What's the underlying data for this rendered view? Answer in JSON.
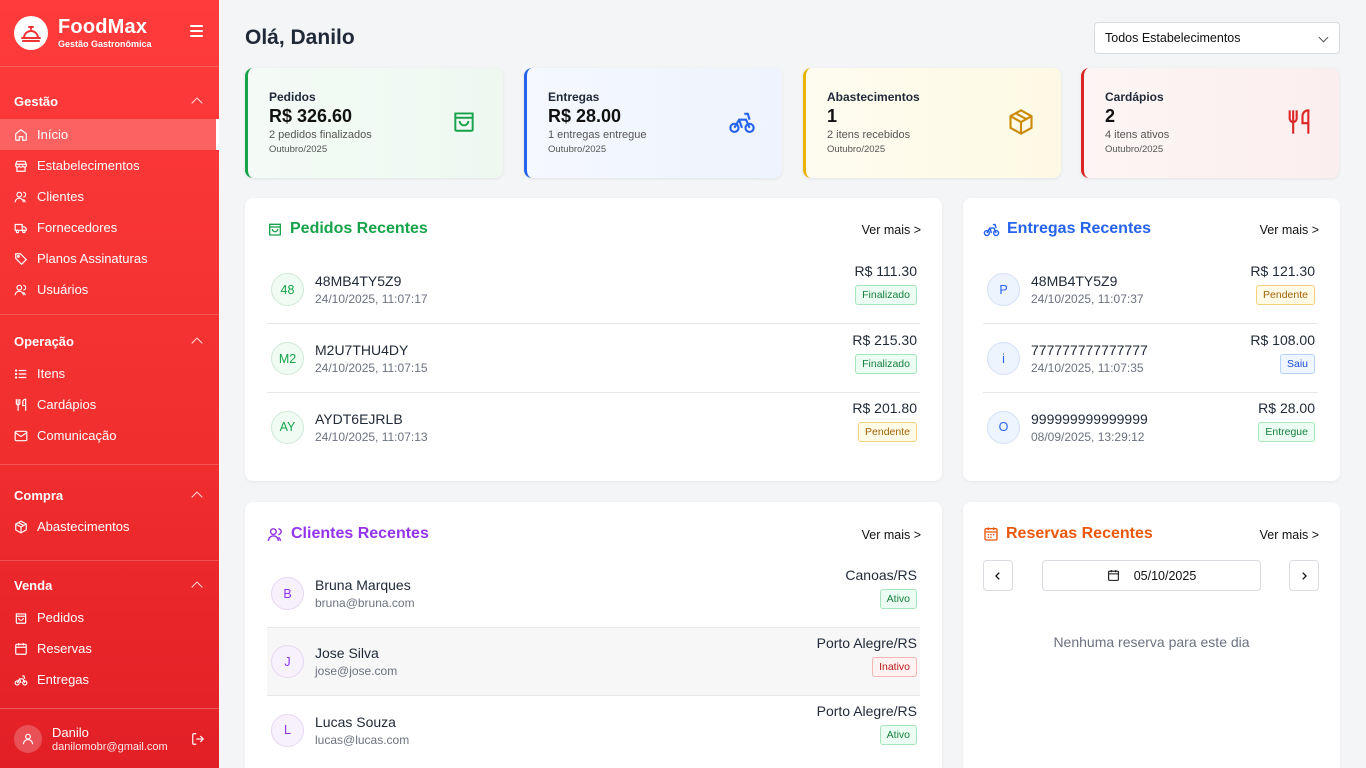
{
  "brand": {
    "name": "FoodMax",
    "subtitle": "Gestão Gastronômica"
  },
  "sidebar": {
    "sections": [
      {
        "title": "Gestão",
        "items": [
          {
            "label": "Início",
            "icon": "home-icon",
            "active": true
          },
          {
            "label": "Estabelecimentos",
            "icon": "store-icon"
          },
          {
            "label": "Clientes",
            "icon": "users-icon"
          },
          {
            "label": "Fornecedores",
            "icon": "truck-icon"
          },
          {
            "label": "Planos Assinaturas",
            "icon": "tag-icon"
          },
          {
            "label": "Usuários",
            "icon": "users-icon"
          }
        ]
      },
      {
        "title": "Operação",
        "items": [
          {
            "label": "Itens",
            "icon": "list-icon"
          },
          {
            "label": "Cardápios",
            "icon": "utensils-icon"
          },
          {
            "label": "Comunicação",
            "icon": "mail-icon"
          }
        ]
      },
      {
        "title": "Compra",
        "items": [
          {
            "label": "Abastecimentos",
            "icon": "package-icon"
          }
        ]
      },
      {
        "title": "Venda",
        "items": [
          {
            "label": "Pedidos",
            "icon": "shopping-bag-icon"
          },
          {
            "label": "Reservas",
            "icon": "calendar-icon"
          },
          {
            "label": "Entregas",
            "icon": "bike-icon"
          }
        ]
      }
    ]
  },
  "user": {
    "name": "Danilo",
    "email": "danilomobr@gmail.com"
  },
  "header": {
    "greeting": "Olá, Danilo",
    "selector": "Todos Estabelecimentos"
  },
  "stats": [
    {
      "title": "Pedidos",
      "value": "R$ 326.60",
      "desc": "2 pedidos finalizados",
      "period": "Outubro/2025",
      "color": "#16a34a",
      "icon": "shopping-bag-icon"
    },
    {
      "title": "Entregas",
      "value": "R$ 28.00",
      "desc": "1 entregas entregue",
      "period": "Outubro/2025",
      "color": "#2563eb",
      "icon": "bike-icon"
    },
    {
      "title": "Abastecimentos",
      "value": "1",
      "desc": "2 itens recebidos",
      "period": "Outubro/2025",
      "color": "#eab308",
      "icon": "package-icon"
    },
    {
      "title": "Cardápios",
      "value": "2",
      "desc": "4 itens ativos",
      "period": "Outubro/2025",
      "color": "#dc2626",
      "icon": "utensils-icon"
    }
  ],
  "pedidos": {
    "title": "Pedidos Recentes",
    "more": "Ver mais >",
    "color": "#16a34a",
    "rows": [
      {
        "avatar": "48",
        "code": "48MB4TY5Z9",
        "date": "24/10/2025, 11:07:17",
        "amount": "R$ 111.30",
        "status": "Finalizado"
      },
      {
        "avatar": "M2",
        "code": "M2U7THU4DY",
        "date": "24/10/2025, 11:07:15",
        "amount": "R$ 215.30",
        "status": "Finalizado"
      },
      {
        "avatar": "AY",
        "code": "AYDT6EJRLB",
        "date": "24/10/2025, 11:07:13",
        "amount": "R$ 201.80",
        "status": "Pendente"
      }
    ]
  },
  "entregas": {
    "title": "Entregas Recentes",
    "more": "Ver mais >",
    "color": "#2563eb",
    "rows": [
      {
        "avatar": "P",
        "code": "48MB4TY5Z9",
        "date": "24/10/2025, 11:07:37",
        "amount": "R$ 121.30",
        "status": "Pendente"
      },
      {
        "avatar": "i",
        "code": "777777777777777",
        "date": "24/10/2025, 11:07:35",
        "amount": "R$ 108.00",
        "status": "Saiu"
      },
      {
        "avatar": "O",
        "code": "999999999999999",
        "date": "08/09/2025, 13:29:12",
        "amount": "R$ 28.00",
        "status": "Entregue"
      }
    ]
  },
  "clientes": {
    "title": "Clientes Recentes",
    "more": "Ver mais >",
    "color": "#9333ea",
    "rows": [
      {
        "avatar": "B",
        "name": "Bruna Marques",
        "email": "bruna@bruna.com",
        "city": "Canoas/RS",
        "status": "Ativo"
      },
      {
        "avatar": "J",
        "name": "Jose Silva",
        "email": "jose@jose.com",
        "city": "Porto Alegre/RS",
        "status": "Inativo"
      },
      {
        "avatar": "L",
        "name": "Lucas Souza",
        "email": "lucas@lucas.com",
        "city": "Porto Alegre/RS",
        "status": "Ativo"
      }
    ]
  },
  "reservas": {
    "title": "Reservas Recentes",
    "more": "Ver mais >",
    "color": "#ea580c",
    "date": "05/10/2025",
    "empty": "Nenhuma reserva para este dia"
  }
}
